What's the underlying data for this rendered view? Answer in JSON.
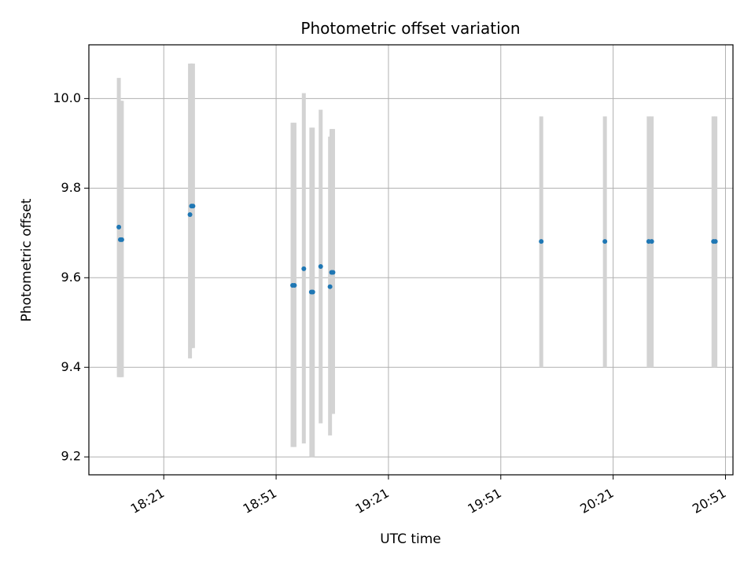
{
  "chart_data": {
    "type": "scatter",
    "title": "Photometric offset variation",
    "xlabel": "UTC time",
    "ylabel": "Photometric offset",
    "x_axis_type": "time",
    "xlim": [
      "18:01",
      "20:53"
    ],
    "ylim": [
      9.16,
      10.12
    ],
    "x_ticks": [
      "18:21",
      "18:51",
      "19:21",
      "19:51",
      "20:21",
      "20:51"
    ],
    "y_ticks": [
      9.2,
      9.4,
      9.6,
      9.8,
      10.0
    ],
    "y_tick_labels": [
      "9.2",
      "9.4",
      "9.6",
      "9.8",
      "10.0"
    ],
    "grid": true,
    "point_color": "#1f77b4",
    "errorbar_color": "#d3d3d3",
    "points": [
      {
        "x": "18:09:00",
        "y": 9.713,
        "ylow": 9.378,
        "yhigh": 10.046
      },
      {
        "x": "18:09:24",
        "y": 9.685,
        "ylow": 9.378,
        "yhigh": 9.995
      },
      {
        "x": "18:09:48",
        "y": 9.685,
        "ylow": 9.378,
        "yhigh": 9.995
      },
      {
        "x": "18:28:00",
        "y": 9.741,
        "ylow": 9.42,
        "yhigh": 10.078
      },
      {
        "x": "18:28:24",
        "y": 9.76,
        "ylow": 9.443,
        "yhigh": 10.078
      },
      {
        "x": "18:28:48",
        "y": 9.76,
        "ylow": 9.443,
        "yhigh": 10.078
      },
      {
        "x": "18:55:24",
        "y": 9.583,
        "ylow": 9.222,
        "yhigh": 9.946
      },
      {
        "x": "18:55:54",
        "y": 9.583,
        "ylow": 9.222,
        "yhigh": 9.946
      },
      {
        "x": "18:58:24",
        "y": 9.62,
        "ylow": 9.23,
        "yhigh": 10.012
      },
      {
        "x": "19:00:24",
        "y": 9.568,
        "ylow": 9.2,
        "yhigh": 9.935
      },
      {
        "x": "19:00:48",
        "y": 9.568,
        "ylow": 9.2,
        "yhigh": 9.935
      },
      {
        "x": "19:02:54",
        "y": 9.625,
        "ylow": 9.275,
        "yhigh": 9.975
      },
      {
        "x": "19:05:24",
        "y": 9.58,
        "ylow": 9.248,
        "yhigh": 9.915
      },
      {
        "x": "19:05:48",
        "y": 9.612,
        "ylow": 9.296,
        "yhigh": 9.932
      },
      {
        "x": "19:06:12",
        "y": 9.612,
        "ylow": 9.296,
        "yhigh": 9.932
      },
      {
        "x": "20:01:48",
        "y": 9.681,
        "ylow": 9.4,
        "yhigh": 9.96
      },
      {
        "x": "20:18:48",
        "y": 9.681,
        "ylow": 9.4,
        "yhigh": 9.96
      },
      {
        "x": "20:30:30",
        "y": 9.681,
        "ylow": 9.4,
        "yhigh": 9.96
      },
      {
        "x": "20:31:18",
        "y": 9.681,
        "ylow": 9.4,
        "yhigh": 9.96
      },
      {
        "x": "20:47:48",
        "y": 9.681,
        "ylow": 9.4,
        "yhigh": 9.96
      },
      {
        "x": "20:48:18",
        "y": 9.681,
        "ylow": 9.4,
        "yhigh": 9.96
      }
    ]
  }
}
